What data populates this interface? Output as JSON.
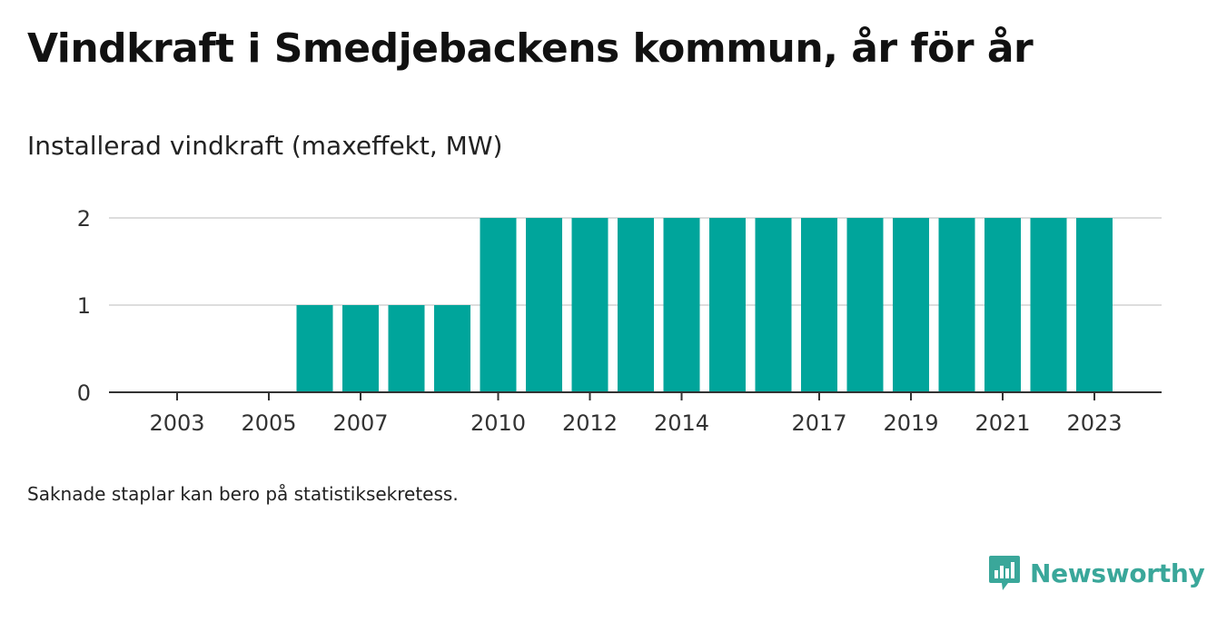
{
  "title": "Vindkraft i Smedjebackens kommun, år för år",
  "subtitle": "Installerad vindkraft (maxeffekt, MW)",
  "note": "Saknade staplar kan bero på statistiksekretess.",
  "brand": {
    "name": "Newsworthy",
    "icon": "newsworthy-logo-icon",
    "color": "#3aa79a"
  },
  "colors": {
    "bar": "#00a59b",
    "grid": "#dddddd",
    "axis": "#333333"
  },
  "chart_data": {
    "type": "bar",
    "categories": [
      "2003",
      "2004",
      "2005",
      "2006",
      "2007",
      "2008",
      "2009",
      "2010",
      "2011",
      "2012",
      "2013",
      "2014",
      "2015",
      "2016",
      "2017",
      "2018",
      "2019",
      "2020",
      "2021",
      "2022",
      "2023"
    ],
    "values": [
      0,
      0,
      0,
      1,
      1,
      1,
      1,
      2,
      2,
      2,
      2,
      2,
      2,
      2,
      2,
      2,
      2,
      2,
      2,
      2,
      2
    ],
    "x_tick_labels": [
      "2003",
      "2005",
      "2007",
      "2010",
      "2012",
      "2014",
      "2017",
      "2019",
      "2021",
      "2023"
    ],
    "y_ticks": [
      0,
      1,
      2
    ],
    "ylim": [
      0,
      2
    ],
    "grid": true,
    "legend": "none"
  }
}
